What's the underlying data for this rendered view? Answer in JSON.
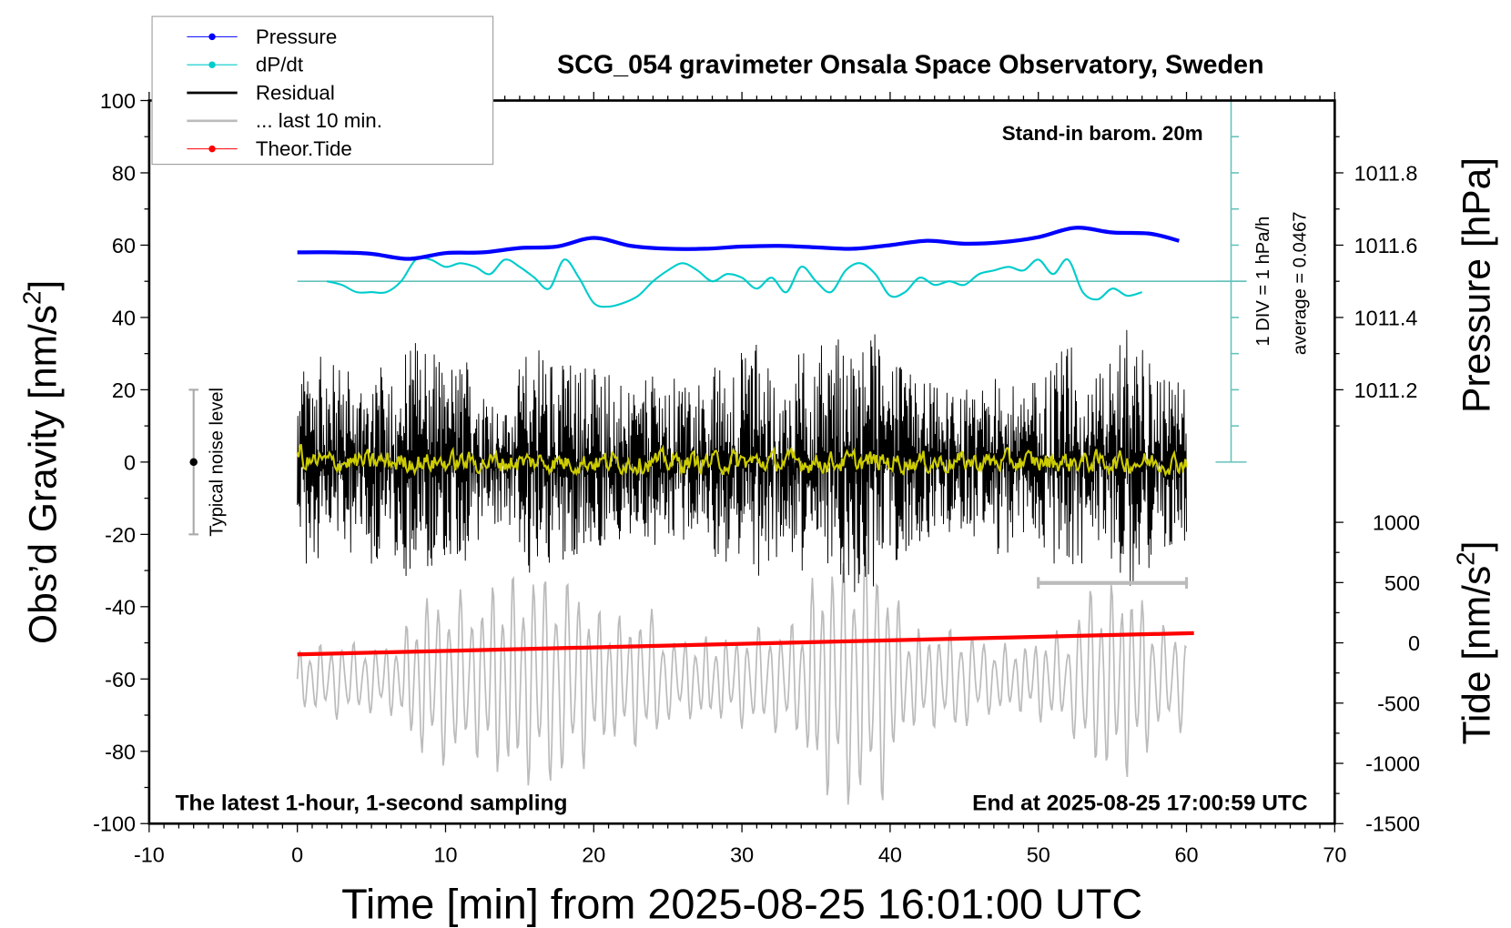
{
  "chart_data": {
    "type": "line",
    "title": "SCG_054 gravimeter Onsala Space Observatory, Sweden",
    "annotation_top_right": "Stand-in barom. 20m",
    "annotation_bottom_left": "The latest 1-hour, 1-second sampling",
    "annotation_bottom_right": "End at 2025-08-25 17:00:59 UTC",
    "xlabel": "Time [min] from 2025-08-25 16:01:00 UTC",
    "ylabel": {
      "main": "Obs’d Gravity [nm/s",
      "sup": "2",
      "end": "]"
    },
    "y2label_pressure": "Pressure [hPa]",
    "y2label_tide": {
      "main": "Tide [nm/s",
      "sup": "2",
      "end": "]"
    },
    "xlim": [
      -10,
      70
    ],
    "ylim": [
      -100,
      100
    ],
    "x_ticks": [
      "-10",
      "0",
      "10",
      "20",
      "30",
      "40",
      "50",
      "60",
      "70"
    ],
    "y_ticks": [
      "100",
      "80",
      "60",
      "40",
      "20",
      "0",
      "-20",
      "-40",
      "-60",
      "-80",
      "-100"
    ],
    "pressure_ticks": [
      "1011.8",
      "1011.6",
      "1011.4",
      "1011.2"
    ],
    "tide_ticks": [
      "1000",
      "500",
      "0",
      "-500",
      "-1000",
      "-1500"
    ],
    "dpdt_scale_label": "1 DIV = 1 hPa/h",
    "dpdt_average_label": "average = 0.0467",
    "noise_label": "Typical noise level",
    "noise_level": [
      -20,
      20
    ],
    "last10_range_min": [
      50,
      60
    ],
    "legend": {
      "position": "top-left",
      "items": [
        {
          "label": "Pressure",
          "color": "#0000ff",
          "marker": true
        },
        {
          "label": "dP/dt",
          "color": "#00cccc",
          "marker": true
        },
        {
          "label": "Residual",
          "color": "#000000",
          "marker": false
        },
        {
          "label": "... last 10 min.",
          "color": "#bbbbbb",
          "marker": false
        },
        {
          "label": "Theor.Tide",
          "color": "#ff0000",
          "marker": true
        }
      ]
    },
    "series": [
      {
        "name": "Pressure",
        "unit": "hPa",
        "color": "#0000ff",
        "x": [
          0,
          2.5,
          5,
          7.5,
          10,
          12.5,
          15,
          17.5,
          20,
          22.5,
          25,
          27.5,
          30,
          32.5,
          35,
          37.5,
          40,
          42.5,
          45,
          47.5,
          50,
          52.5,
          55,
          57.5,
          59.5
        ],
        "y": [
          1011.58,
          1011.58,
          1011.576,
          1011.562,
          1011.578,
          1011.58,
          1011.592,
          1011.596,
          1011.62,
          1011.598,
          1011.59,
          1011.59,
          1011.596,
          1011.598,
          1011.594,
          1011.59,
          1011.6,
          1011.612,
          1011.604,
          1011.608,
          1011.622,
          1011.648,
          1011.635,
          1011.632,
          1011.612
        ]
      },
      {
        "name": "dP/dt",
        "unit": "hPa/h",
        "color": "#00cccc",
        "x": [
          2,
          3,
          4,
          5,
          6,
          7,
          8,
          9,
          10,
          11,
          12,
          13,
          14,
          15,
          16,
          17,
          18,
          19,
          20,
          21,
          22,
          23,
          24,
          25,
          26,
          27,
          28,
          29,
          30,
          31,
          32,
          33,
          34,
          35,
          36,
          37,
          38,
          39,
          40,
          41,
          42,
          43,
          44,
          45,
          46,
          47,
          48,
          49,
          50,
          51,
          52,
          53,
          54,
          55,
          56,
          57
        ],
        "y": [
          0,
          -0.1,
          -0.3,
          -0.3,
          -0.3,
          0,
          0.6,
          0.6,
          0.4,
          0.5,
          0.4,
          0.2,
          0.6,
          0.4,
          0.1,
          -0.2,
          0.6,
          0.1,
          -0.6,
          -0.7,
          -0.6,
          -0.4,
          0,
          0.3,
          0.5,
          0.3,
          0,
          0.2,
          0.1,
          -0.2,
          0.1,
          -0.3,
          0.4,
          0,
          -0.3,
          0.3,
          0.5,
          0.2,
          -0.4,
          -0.3,
          0.1,
          -0.1,
          0,
          -0.1,
          0.2,
          0.3,
          0.4,
          0.3,
          0.6,
          0.2,
          0.6,
          -0.3,
          -0.5,
          -0.2,
          -0.4,
          -0.3
        ]
      },
      {
        "name": "Residual",
        "unit": "nm/s2",
        "color": "#000000",
        "kind": "envelope_per_minute",
        "amplitude": [
          20,
          35,
          25,
          30,
          20,
          30,
          25,
          30,
          35,
          35,
          25,
          30,
          25,
          20,
          15,
          25,
          35,
          30,
          30,
          25,
          30,
          25,
          20,
          20,
          25,
          20,
          25,
          20,
          25,
          30,
          30,
          35,
          25,
          25,
          30,
          30,
          35,
          35,
          35,
          35,
          30,
          25,
          25,
          20,
          20,
          20,
          20,
          25,
          25,
          20,
          25,
          30,
          35,
          30,
          25,
          30,
          40,
          30,
          25,
          25,
          20
        ]
      },
      {
        "name": "Residual smoothed",
        "unit": "nm/s2",
        "color": "#cccc00",
        "kind": "mean",
        "amplitude": 3
      },
      {
        "name": "... last 10 min.",
        "unit": "nm/s2",
        "color": "#bbbbbb",
        "kind": "oscillation",
        "center": -60,
        "amplitude": [
          8,
          10,
          10,
          12,
          10,
          10,
          10,
          12,
          22,
          25,
          25,
          25,
          22,
          28,
          30,
          30,
          32,
          32,
          30,
          28,
          20,
          20,
          18,
          20,
          20,
          12,
          12,
          12,
          12,
          12,
          14,
          15,
          15,
          16,
          18,
          32,
          35,
          38,
          38,
          38,
          32,
          15,
          15,
          14,
          15,
          15,
          12,
          10,
          10,
          10,
          12,
          14,
          12,
          25,
          28,
          28,
          28,
          25,
          16,
          15,
          15
        ]
      },
      {
        "name": "Theor.Tide",
        "unit": "nm/s2",
        "color": "#ff0000",
        "x": [
          0,
          60.5
        ],
        "y": [
          -96,
          81
        ]
      }
    ]
  }
}
